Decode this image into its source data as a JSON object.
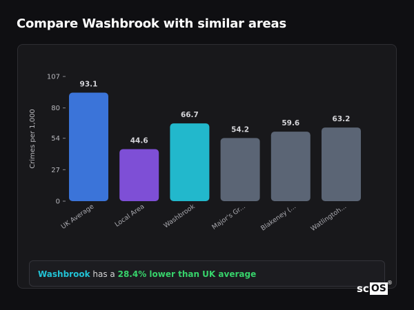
{
  "page": {
    "title": "Compare Washbrook with similar areas"
  },
  "chart_data": {
    "type": "bar",
    "ylabel": "Crimes per 1,000",
    "xlabel": "",
    "ylim": [
      0,
      107
    ],
    "yticks": [
      0,
      27,
      54,
      80,
      107
    ],
    "categories": [
      "UK Average",
      "Local Area",
      "Washbrook",
      "Major's Gr...",
      "Blakeney (...",
      "Watlingtoh..."
    ],
    "values": [
      93.1,
      44.6,
      66.7,
      54.2,
      59.6,
      63.2
    ],
    "value_labels": [
      "93.1",
      "44.6",
      "66.7",
      "54.2",
      "59.6",
      "63.2"
    ],
    "colors": [
      "#3b74d9",
      "#7e4fd6",
      "#22b8cc",
      "#5b6575",
      "#5b6575",
      "#5b6575"
    ],
    "grid": false,
    "legend": "none"
  },
  "summary": {
    "area": "Washbrook",
    "mid1": " has a ",
    "difference": "28.4% lower than UK average"
  },
  "brand": {
    "part1": "sc",
    "part2": "OS",
    "mark": "®"
  }
}
